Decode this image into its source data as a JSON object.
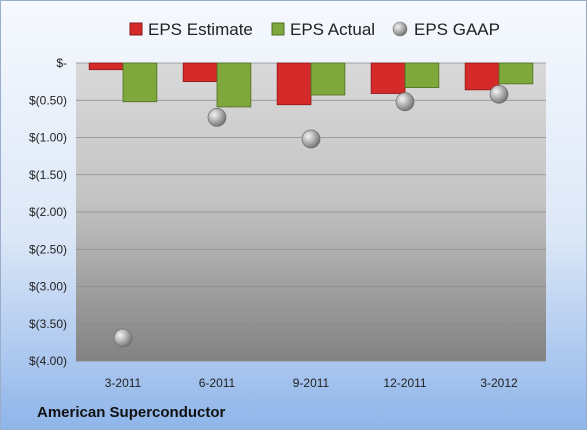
{
  "chart_data": {
    "type": "bar",
    "categories": [
      "3-2011",
      "6-2011",
      "9-2011",
      "12-2011",
      "3-2012"
    ],
    "series": [
      {
        "name": "EPS Estimate",
        "values": [
          -0.09,
          -0.25,
          -0.56,
          -0.41,
          -0.36
        ],
        "color": "#d42a2a"
      },
      {
        "name": "EPS Actual",
        "values": [
          -0.52,
          -0.59,
          -0.43,
          -0.33,
          -0.28
        ],
        "color": "#7ea83c"
      }
    ],
    "scatter_series": {
      "name": "EPS GAAP",
      "values": [
        -3.69,
        -0.73,
        -1.02,
        -0.52,
        -0.42
      ],
      "color": "#a8a8a8"
    },
    "yticks": [
      {
        "value": 0,
        "label": "$-"
      },
      {
        "value": -0.5,
        "label": "$(0.50)"
      },
      {
        "value": -1.0,
        "label": "$(1.00)"
      },
      {
        "value": -1.5,
        "label": "$(1.50)"
      },
      {
        "value": -2.0,
        "label": "$(2.00)"
      },
      {
        "value": -2.5,
        "label": "$(2.50)"
      },
      {
        "value": -3.0,
        "label": "$(3.00)"
      },
      {
        "value": -3.5,
        "label": "$(3.50)"
      },
      {
        "value": -4.0,
        "label": "$(4.00)"
      }
    ],
    "ylim": [
      -4.0,
      0
    ],
    "grid": true,
    "legend_position": "top",
    "caption": "American Superconductor"
  }
}
